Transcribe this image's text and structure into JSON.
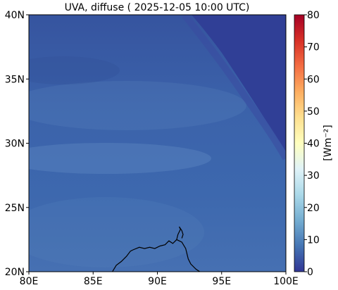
{
  "figure": {
    "title": "UVA, diffuse ( 2025-12-05 10:00 UTC)"
  },
  "map": {
    "lon_range": [
      80,
      100
    ],
    "lat_range": [
      20,
      40
    ],
    "x_ticks": [
      {
        "value": 80,
        "label": "80E"
      },
      {
        "value": 85,
        "label": "85E"
      },
      {
        "value": 90,
        "label": "90E"
      },
      {
        "value": 95,
        "label": "95E"
      },
      {
        "value": 100,
        "label": "100E"
      }
    ],
    "y_ticks": [
      {
        "value": 20,
        "label": "20N"
      },
      {
        "value": 25,
        "label": "25N"
      },
      {
        "value": 30,
        "label": "30N"
      },
      {
        "value": 35,
        "label": "35N"
      },
      {
        "value": 40,
        "label": "40N"
      }
    ],
    "coastline": [
      [
        86.5,
        20.0
      ],
      [
        86.8,
        20.5
      ],
      [
        87.2,
        20.8
      ],
      [
        87.6,
        21.2
      ],
      [
        87.9,
        21.6
      ],
      [
        88.1,
        21.7
      ],
      [
        88.6,
        21.9
      ],
      [
        89.0,
        21.8
      ],
      [
        89.4,
        21.9
      ],
      [
        89.8,
        21.8
      ],
      [
        90.2,
        22.0
      ],
      [
        90.6,
        22.1
      ],
      [
        90.9,
        22.4
      ],
      [
        91.2,
        22.2
      ],
      [
        91.5,
        22.5
      ],
      [
        91.9,
        22.3
      ],
      [
        92.2,
        21.8
      ],
      [
        92.4,
        21.0
      ],
      [
        92.6,
        20.6
      ],
      [
        93.0,
        20.2
      ],
      [
        93.3,
        20.0
      ]
    ],
    "coastline_inlet": [
      [
        91.5,
        22.5
      ],
      [
        91.6,
        22.9
      ],
      [
        91.8,
        23.3
      ],
      [
        91.7,
        23.5
      ],
      [
        91.9,
        23.2
      ],
      [
        92.0,
        22.9
      ],
      [
        91.9,
        22.6
      ]
    ]
  },
  "colorbar": {
    "label": "[Wm⁻²]",
    "min": 0,
    "max": 80,
    "ticks": [
      0,
      10,
      20,
      30,
      40,
      50,
      60,
      70,
      80
    ],
    "colormap": "RdYlBu_r",
    "stops": [
      "#313695",
      "#4575b4",
      "#74add1",
      "#abd9e9",
      "#e0f3f8",
      "#ffffbf",
      "#fee090",
      "#fdae61",
      "#f46d43",
      "#d73027",
      "#a50026"
    ]
  },
  "field": {
    "base_color": "#3a5fa8",
    "dark_region_color": "#303f96",
    "light_band_color": "#5b86c0"
  }
}
